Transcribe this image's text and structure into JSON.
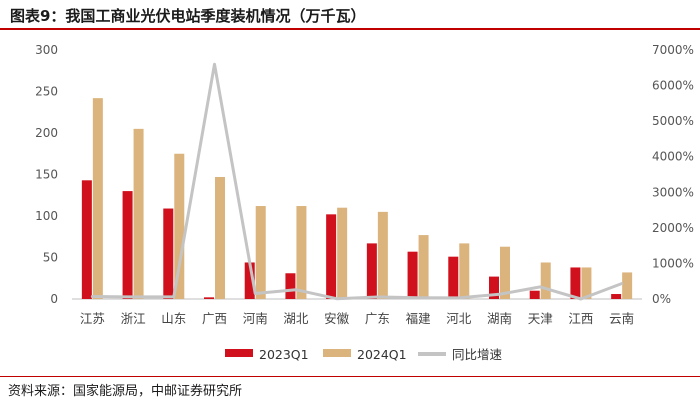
{
  "figure": {
    "title": "图表9：我国工商业光伏电站季度装机情况（万千瓦）",
    "source": "资料来源：国家能源局，中邮证券研究所"
  },
  "chart_data": {
    "type": "bar",
    "title": "",
    "xlabel": "",
    "ylabel": "",
    "categories": [
      "江苏",
      "浙江",
      "山东",
      "广西",
      "河南",
      "湖北",
      "安徽",
      "广东",
      "福建",
      "河北",
      "湖南",
      "天津",
      "江西",
      "云南"
    ],
    "series": [
      {
        "name": "2023Q1",
        "type": "bar",
        "axis": "left",
        "color": "#d0101c",
        "values": [
          143,
          130,
          109,
          2,
          44,
          31,
          102,
          67,
          57,
          51,
          27,
          10,
          38,
          6
        ]
      },
      {
        "name": "2024Q1",
        "type": "bar",
        "axis": "left",
        "color": "#dbb37c",
        "values": [
          242,
          205,
          175,
          147,
          112,
          112,
          110,
          105,
          77,
          67,
          63,
          44,
          38,
          32
        ]
      },
      {
        "name": "同比增速",
        "type": "line",
        "axis": "right",
        "color": "#c4c4c4",
        "values": [
          69,
          58,
          61,
          6600,
          155,
          261,
          8,
          57,
          35,
          31,
          133,
          340,
          0,
          433
        ]
      }
    ],
    "y_left": {
      "min": 0,
      "max": 300,
      "ticks": [
        "0",
        "50",
        "100",
        "150",
        "200",
        "250",
        "300"
      ]
    },
    "y_right": {
      "min": 0,
      "max": 7000,
      "ticks": [
        "0%",
        "1000%",
        "2000%",
        "3000%",
        "4000%",
        "5000%",
        "6000%",
        "7000%"
      ]
    },
    "grid": false,
    "legend": "bottom"
  }
}
